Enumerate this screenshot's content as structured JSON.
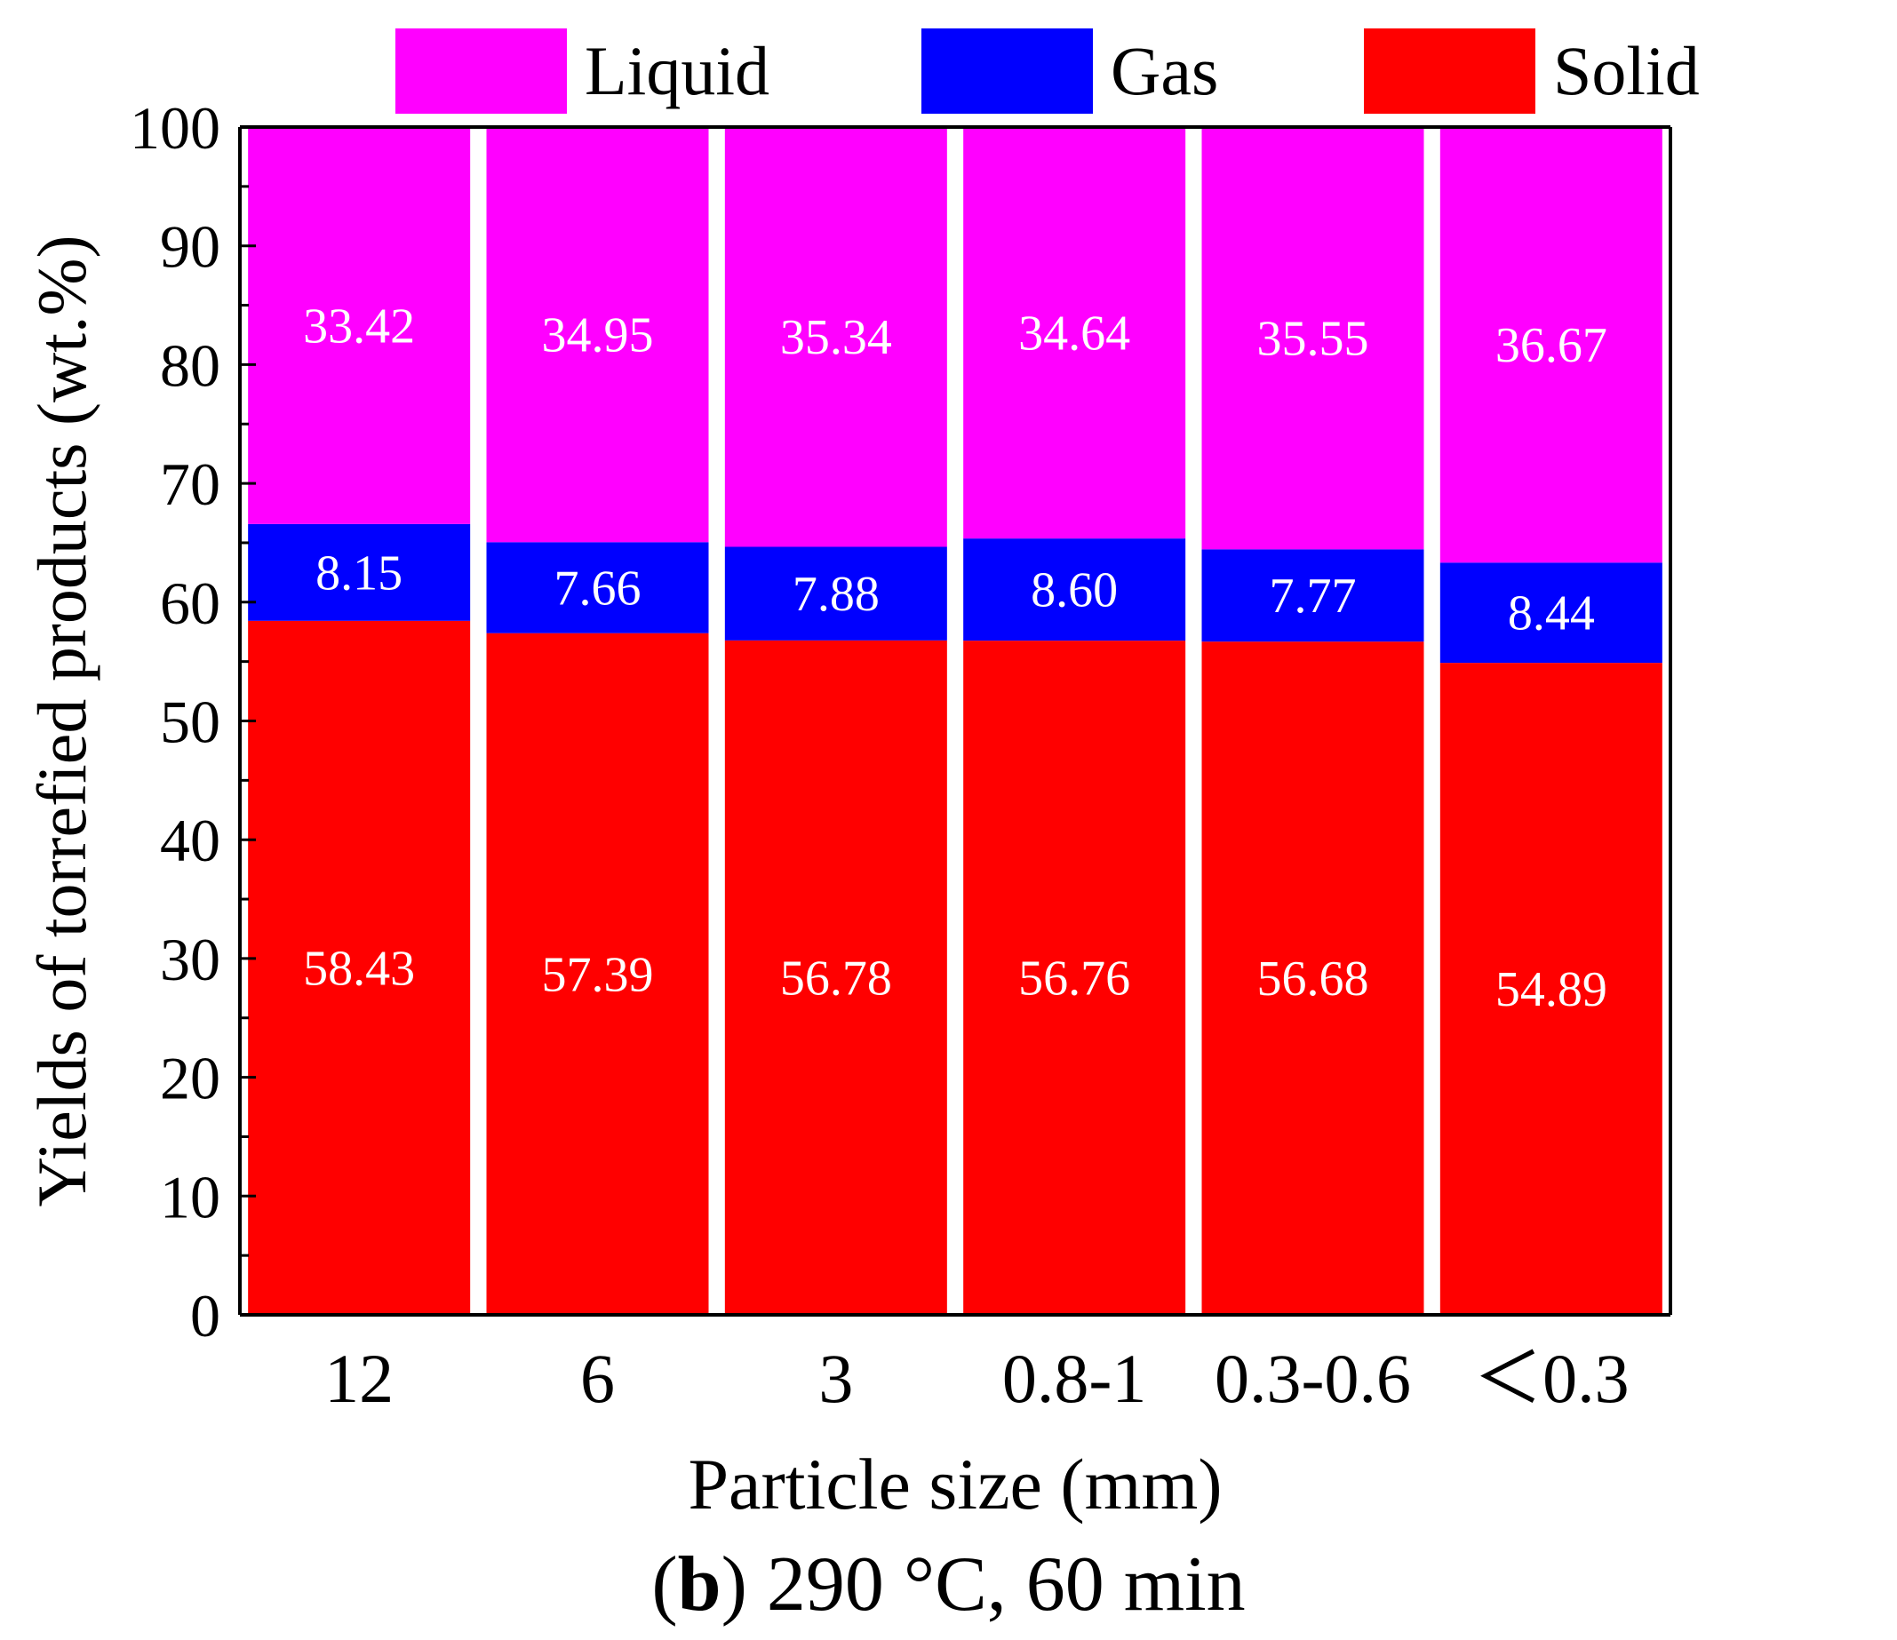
{
  "chart_data": {
    "type": "bar",
    "stacked": true,
    "categories": [
      "12",
      "6",
      "3",
      "0.8-1",
      "0.3-0.6",
      "＜0.3"
    ],
    "series": [
      {
        "name": "Solid",
        "color": "#ff0000",
        "values": [
          58.43,
          57.39,
          56.78,
          56.76,
          56.68,
          54.89
        ]
      },
      {
        "name": "Gas",
        "color": "#0000ff",
        "values": [
          8.15,
          7.66,
          7.88,
          8.6,
          7.77,
          8.44
        ]
      },
      {
        "name": "Liquid",
        "color": "#ff00ff",
        "values": [
          33.42,
          34.95,
          35.34,
          34.64,
          35.55,
          36.67
        ]
      }
    ],
    "legend": [
      "Liquid",
      "Gas",
      "Solid"
    ],
    "legend_position": "top",
    "xlabel": "Particle size (mm)",
    "ylabel": "Yields of torrefied products (wt.%)",
    "ylim": [
      0,
      100
    ],
    "y_ticks": [
      "0",
      "10",
      "20",
      "30",
      "40",
      "50",
      "60",
      "70",
      "80",
      "90",
      "100"
    ],
    "grid": false
  },
  "caption": {
    "panel": "b",
    "text": ") 290 °C, 60 min",
    "open_paren": "("
  }
}
